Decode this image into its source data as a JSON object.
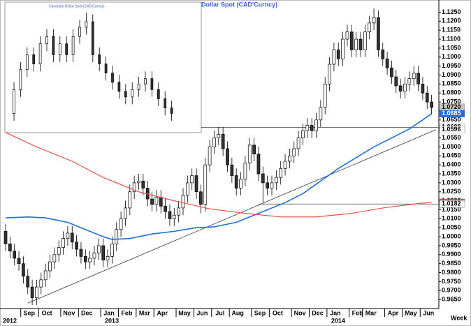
{
  "chart_data": {
    "type": "candlestick",
    "title": "Canadian  Dollar  Spot  (CAD'Curncy)",
    "x_unit": "Week",
    "categories": [
      null,
      null,
      null,
      null,
      null,
      "Sep",
      null,
      null,
      null,
      "Oct",
      null,
      null,
      null,
      null,
      "Nov",
      null,
      null,
      null,
      "Dec",
      null,
      null,
      null,
      null,
      "Jan",
      null,
      null,
      null,
      "Feb",
      null,
      null,
      null,
      "Mar",
      null,
      null,
      null,
      "Apr",
      null,
      null,
      null,
      null,
      "May",
      null,
      null,
      null,
      "Jun",
      null,
      null,
      null,
      "Jul",
      null,
      null,
      null,
      "Aug",
      null,
      null,
      null,
      null,
      "Sep",
      null,
      null,
      null,
      "Oct",
      null,
      null,
      null,
      null,
      "Nov",
      null,
      null,
      null,
      "Dec",
      null,
      null,
      null,
      "Jan",
      null,
      null,
      null,
      null,
      "Feb",
      null,
      null,
      "Mar",
      null,
      null,
      null,
      null,
      "Apr",
      null,
      null,
      null,
      "May",
      null,
      null,
      null,
      "Jun",
      null
    ],
    "years": [
      "2012",
      null,
      null,
      null,
      null,
      null,
      null,
      null,
      null,
      null,
      null,
      null,
      null,
      null,
      null,
      null,
      null,
      null,
      null,
      null,
      null,
      null,
      null,
      "2013",
      null,
      null,
      null,
      null,
      null,
      null,
      null,
      null,
      null,
      null,
      null,
      null,
      null,
      null,
      null,
      null,
      null,
      null,
      null,
      null,
      null,
      null,
      null,
      null,
      null,
      null,
      null,
      null,
      null,
      null,
      null,
      null,
      null,
      null,
      null,
      null,
      null,
      null,
      null,
      null,
      null,
      null,
      null,
      null,
      null,
      null,
      null,
      null,
      null,
      null,
      "2014",
      null,
      null,
      null,
      null,
      null,
      null,
      null,
      null,
      null,
      null,
      null,
      null,
      null,
      null,
      null,
      null,
      null,
      null,
      null,
      null,
      null,
      null
    ],
    "open": [
      1.003,
      0.996,
      0.992,
      0.988,
      0.985,
      0.978,
      0.972,
      0.966,
      0.972,
      0.976,
      0.981,
      0.986,
      0.99,
      0.994,
      0.999,
      1.002,
      0.997,
      0.993,
      0.989,
      0.986,
      0.988,
      0.991,
      0.995,
      0.987,
      0.989,
      0.996,
      1.004,
      1.01,
      1.016,
      1.025,
      1.03,
      1.031,
      1.027,
      1.021,
      1.018,
      1.022,
      1.017,
      1.014,
      1.01,
      1.012,
      1.016,
      1.023,
      1.03,
      1.034,
      1.025,
      1.018,
      1.04,
      1.05,
      1.055,
      1.057,
      1.049,
      1.04,
      1.034,
      1.027,
      1.032,
      1.041,
      1.051,
      1.046,
      1.035,
      1.03,
      1.027,
      1.03,
      1.033,
      1.038,
      1.042,
      1.045,
      1.049,
      1.055,
      1.059,
      1.062,
      1.059,
      1.065,
      1.072,
      1.085,
      1.096,
      1.104,
      1.099,
      1.11,
      1.114,
      1.104,
      1.11,
      1.104,
      1.114,
      1.119,
      1.122,
      1.104,
      1.099,
      1.094,
      1.089,
      1.084,
      1.081,
      1.085,
      1.088,
      1.091,
      1.085,
      1.08,
      1.075
    ],
    "high": [
      1.007,
      1.0,
      0.996,
      0.992,
      0.989,
      0.982,
      0.976,
      0.976,
      0.98,
      0.985,
      0.99,
      0.994,
      0.998,
      1.003,
      1.006,
      1.006,
      1.001,
      0.997,
      0.993,
      0.992,
      0.995,
      0.999,
      0.999,
      0.993,
      1.0,
      1.008,
      1.014,
      1.02,
      1.029,
      1.034,
      1.035,
      1.035,
      1.031,
      1.025,
      1.026,
      1.026,
      1.021,
      1.018,
      1.016,
      1.02,
      1.027,
      1.034,
      1.038,
      1.038,
      1.029,
      1.044,
      1.054,
      1.059,
      1.061,
      1.061,
      1.053,
      1.044,
      1.038,
      1.036,
      1.045,
      1.055,
      1.055,
      1.05,
      1.039,
      1.034,
      1.034,
      1.037,
      1.042,
      1.046,
      1.049,
      1.053,
      1.059,
      1.063,
      1.066,
      1.066,
      1.069,
      1.076,
      1.089,
      1.1,
      1.108,
      1.108,
      1.114,
      1.118,
      1.118,
      1.114,
      1.114,
      1.118,
      1.123,
      1.127,
      1.126,
      1.108,
      1.103,
      1.098,
      1.093,
      1.088,
      1.089,
      1.092,
      1.095,
      1.095,
      1.089,
      1.084,
      1.079
    ],
    "low": [
      0.992,
      0.988,
      0.984,
      0.981,
      0.974,
      0.968,
      0.962,
      0.962,
      0.968,
      0.972,
      0.977,
      0.982,
      0.986,
      0.99,
      0.995,
      0.993,
      0.989,
      0.985,
      0.982,
      0.982,
      0.984,
      0.987,
      0.983,
      0.983,
      0.985,
      0.992,
      1.0,
      1.006,
      1.012,
      1.021,
      1.026,
      1.023,
      1.017,
      1.014,
      1.014,
      1.013,
      1.01,
      1.006,
      1.006,
      1.008,
      1.012,
      1.019,
      1.026,
      1.021,
      1.013,
      1.014,
      1.036,
      1.046,
      1.051,
      1.045,
      1.036,
      1.03,
      1.023,
      1.023,
      1.028,
      1.037,
      1.042,
      1.031,
      1.019,
      1.023,
      1.023,
      1.026,
      1.029,
      1.034,
      1.038,
      1.041,
      1.045,
      1.051,
      1.055,
      1.055,
      1.055,
      1.061,
      1.068,
      1.081,
      1.092,
      1.095,
      1.095,
      1.106,
      1.1,
      1.1,
      1.1,
      1.1,
      1.11,
      1.115,
      1.1,
      1.095,
      1.09,
      1.085,
      1.08,
      1.077,
      1.077,
      1.081,
      1.084,
      1.081,
      1.076,
      1.071,
      1.068
    ],
    "close": [
      0.996,
      0.992,
      0.988,
      0.985,
      0.978,
      0.972,
      0.966,
      0.972,
      0.976,
      0.981,
      0.986,
      0.99,
      0.994,
      0.999,
      1.002,
      0.997,
      0.993,
      0.989,
      0.986,
      0.988,
      0.991,
      0.995,
      0.987,
      0.989,
      0.996,
      1.004,
      1.01,
      1.016,
      1.025,
      1.03,
      1.031,
      1.027,
      1.021,
      1.018,
      1.022,
      1.017,
      1.014,
      1.01,
      1.012,
      1.016,
      1.023,
      1.03,
      1.034,
      1.025,
      1.018,
      1.04,
      1.05,
      1.055,
      1.057,
      1.049,
      1.04,
      1.034,
      1.027,
      1.032,
      1.041,
      1.051,
      1.046,
      1.035,
      1.03,
      1.027,
      1.03,
      1.033,
      1.038,
      1.042,
      1.045,
      1.049,
      1.055,
      1.059,
      1.062,
      1.059,
      1.065,
      1.072,
      1.085,
      1.096,
      1.104,
      1.099,
      1.11,
      1.114,
      1.104,
      1.11,
      1.104,
      1.114,
      1.119,
      1.122,
      1.104,
      1.099,
      1.094,
      1.089,
      1.084,
      1.081,
      1.085,
      1.088,
      1.091,
      1.085,
      1.08,
      1.075,
      1.072
    ],
    "lines": [
      {
        "color": "#1f6fd6",
        "x": [
          0,
          5,
          9,
          14,
          18,
          22,
          24,
          28,
          33,
          38,
          43,
          47,
          52,
          55,
          59,
          63,
          67,
          71,
          75,
          79,
          83,
          87,
          91,
          94,
          96
        ],
        "values": [
          1.0105,
          1.011,
          1.0105,
          1.008,
          1.004,
          1.0,
          0.9985,
          0.999,
          1.0015,
          1.003,
          1.005,
          1.0055,
          1.008,
          1.011,
          1.015,
          1.019,
          1.024,
          1.031,
          1.038,
          1.044,
          1.05,
          1.055,
          1.06,
          1.065,
          1.0685
        ]
      },
      {
        "color": "#e8504a",
        "x": [
          0,
          7,
          15,
          22,
          30,
          38,
          46,
          54,
          62,
          70,
          78,
          85,
          93,
          96
        ],
        "values": [
          1.058,
          1.05,
          1.042,
          1.033,
          1.025,
          1.02,
          1.0155,
          1.013,
          1.011,
          1.011,
          1.013,
          1.016,
          1.0185,
          1.0191
        ]
      }
    ],
    "hlines": [
      {
        "x": 44,
        "value": 1.0609
      },
      {
        "x": 57,
        "value": 1.0182
      }
    ],
    "trendline": {
      "x": [
        5,
        97
      ],
      "values": [
        0.963,
        1.0596
      ]
    },
    "price_labels": [
      {
        "value": 1.072,
        "label": "1.0720",
        "color": "#c8c8c8"
      },
      {
        "value": 1.0685,
        "label": "1.0685",
        "color": "#1f6fd6"
      },
      {
        "value": 1.0609,
        "label": "1.0609",
        "color": "#ffffff"
      },
      {
        "value": 1.0596,
        "label": "1.0596",
        "color": "#ffffff"
      },
      {
        "value": 1.0191,
        "label": "1.0191",
        "color": "#e8504a"
      },
      {
        "value": 1.0182,
        "label": "1.0182",
        "color": "#ffffff"
      }
    ],
    "ylim": [
      0.96,
      1.131
    ],
    "yticks": [
      {
        "value": 0.965,
        "label": "0.9650"
      },
      {
        "value": 0.97,
        "label": "0.9700"
      },
      {
        "value": 0.975,
        "label": "0.9750"
      },
      {
        "value": 0.98,
        "label": "0.9800"
      },
      {
        "value": 0.985,
        "label": "0.9850"
      },
      {
        "value": 0.99,
        "label": "0.9900"
      },
      {
        "value": 0.995,
        "label": "0.9950"
      },
      {
        "value": 1.0,
        "label": "1.0000"
      },
      {
        "value": 1.005,
        "label": "1.0050"
      },
      {
        "value": 1.01,
        "label": "1.0100"
      },
      {
        "value": 1.015,
        "label": "1.0150"
      },
      {
        "value": 1.02,
        "label": "1.0200"
      },
      {
        "value": 1.025,
        "label": "1.0250"
      },
      {
        "value": 1.03,
        "label": "1.0300"
      },
      {
        "value": 1.035,
        "label": "1.0350"
      },
      {
        "value": 1.04,
        "label": "1.0400"
      },
      {
        "value": 1.045,
        "label": "1.0450"
      },
      {
        "value": 1.05,
        "label": "1.0500"
      },
      {
        "value": 1.055,
        "label": "1.0550"
      },
      {
        "value": 1.06,
        "label": "1.0600"
      },
      {
        "value": 1.065,
        "label": "1.0650"
      },
      {
        "value": 1.07,
        "label": "1.0700"
      },
      {
        "value": 1.075,
        "label": "1.0750"
      },
      {
        "value": 1.08,
        "label": "1.0800"
      },
      {
        "value": 1.085,
        "label": "1.0850"
      },
      {
        "value": 1.09,
        "label": "1.0900"
      },
      {
        "value": 1.095,
        "label": "1.0950"
      },
      {
        "value": 1.1,
        "label": "1.1000"
      },
      {
        "value": 1.105,
        "label": "1.1050"
      },
      {
        "value": 1.11,
        "label": "1.1100"
      },
      {
        "value": 1.115,
        "label": "1.1150"
      },
      {
        "value": 1.12,
        "label": "1.1200"
      },
      {
        "value": 1.125,
        "label": "1.1250"
      }
    ],
    "inset_from": 72
  }
}
